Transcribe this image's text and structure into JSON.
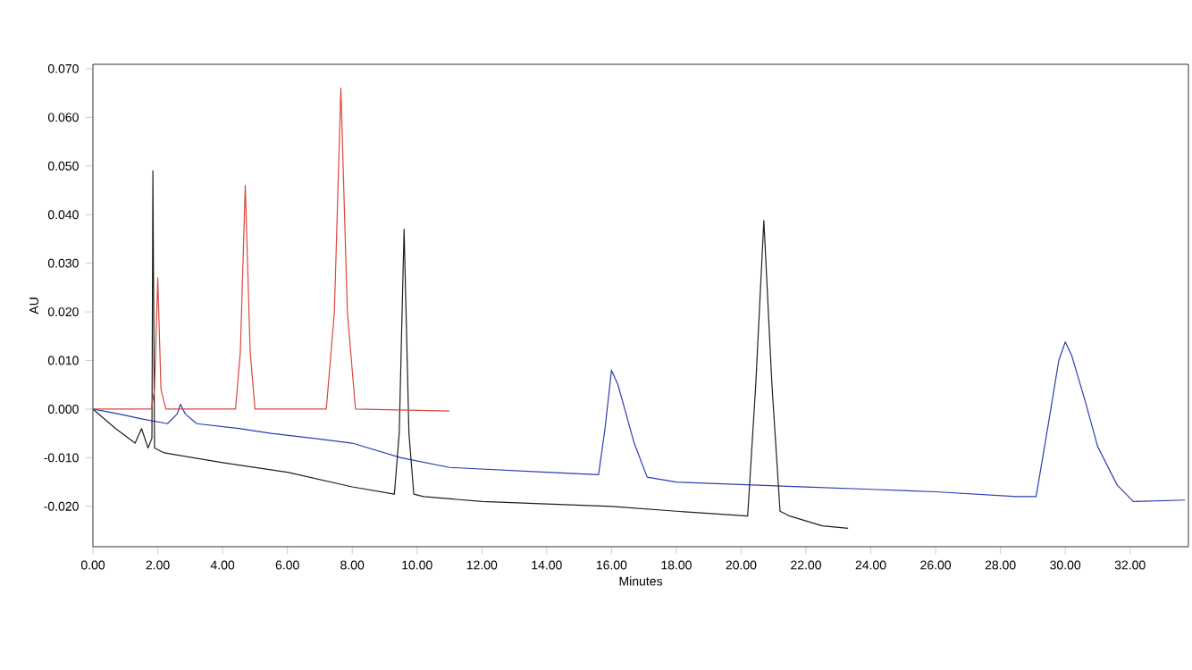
{
  "chart_data": {
    "type": "line",
    "xlabel": "Minutes",
    "ylabel": "AU",
    "xlim": [
      0,
      33.8
    ],
    "ylim": [
      -0.0283,
      0.0709
    ],
    "xticks": [
      {
        "value": 0,
        "label": "0.00"
      },
      {
        "value": 2,
        "label": "2.00"
      },
      {
        "value": 4,
        "label": "4.00"
      },
      {
        "value": 6,
        "label": "6.00"
      },
      {
        "value": 8,
        "label": "8.00"
      },
      {
        "value": 10,
        "label": "10.00"
      },
      {
        "value": 12,
        "label": "12.00"
      },
      {
        "value": 14,
        "label": "14.00"
      },
      {
        "value": 16,
        "label": "16.00"
      },
      {
        "value": 18,
        "label": "18.00"
      },
      {
        "value": 20,
        "label": "20.00"
      },
      {
        "value": 22,
        "label": "22.00"
      },
      {
        "value": 24,
        "label": "24.00"
      },
      {
        "value": 26,
        "label": "26.00"
      },
      {
        "value": 28,
        "label": "28.00"
      },
      {
        "value": 30,
        "label": "30.00"
      },
      {
        "value": 32,
        "label": "32.00"
      }
    ],
    "yticks": [
      {
        "value": -0.02,
        "label": "-0.020"
      },
      {
        "value": -0.01,
        "label": "-0.010"
      },
      {
        "value": 0,
        "label": "0.000"
      },
      {
        "value": 0.01,
        "label": "0.010"
      },
      {
        "value": 0.02,
        "label": "0.020"
      },
      {
        "value": 0.03,
        "label": "0.030"
      },
      {
        "value": 0.04,
        "label": "0.040"
      },
      {
        "value": 0.05,
        "label": "0.050"
      },
      {
        "value": 0.06,
        "label": "0.060"
      },
      {
        "value": 0.07,
        "label": "0.070"
      }
    ],
    "grid": false,
    "marker": "none",
    "line_style": "solid",
    "series": [
      {
        "color": "#2b3cb0",
        "x": [
          0,
          0.8,
          1.5,
          2.3,
          2.6,
          2.7,
          2.85,
          3.2,
          4.5,
          5.5,
          6.8,
          8,
          9.5,
          11,
          12.5,
          14,
          15.6,
          15.8,
          16.0,
          16.2,
          16.4,
          16.7,
          17.1,
          18,
          20,
          22,
          24,
          26,
          28.5,
          29.1,
          29.5,
          29.8,
          30.0,
          30.2,
          30.6,
          31.0,
          31.6,
          32.1,
          33.7
        ],
        "values": [
          0,
          -0.001,
          -0.002,
          -0.003,
          -0.001,
          0.001,
          -0.001,
          -0.003,
          -0.004,
          -0.005,
          -0.006,
          -0.007,
          -0.01,
          -0.012,
          -0.0125,
          -0.013,
          -0.0135,
          -0.004,
          0.008,
          0.005,
          0.0002,
          -0.007,
          -0.014,
          -0.015,
          -0.0155,
          -0.016,
          -0.0165,
          -0.017,
          -0.018,
          -0.018,
          -0.0022,
          0.01,
          0.0138,
          0.011,
          0.002,
          -0.0077,
          -0.0156,
          -0.019,
          -0.0187
        ]
      },
      {
        "color": "#1e1e1e",
        "x": [
          0,
          0.7,
          1.3,
          1.5,
          1.7,
          1.82,
          1.85,
          1.9,
          2.2,
          4,
          6,
          8,
          9.3,
          9.45,
          9.6,
          9.75,
          9.9,
          10.2,
          12,
          14,
          16,
          18,
          20.2,
          20.45,
          20.7,
          20.95,
          21.2,
          21.5,
          22.5,
          23.3
        ],
        "values": [
          0,
          -0.004,
          -0.007,
          -0.004,
          -0.008,
          -0.006,
          0.049,
          -0.008,
          -0.009,
          -0.011,
          -0.013,
          -0.016,
          -0.0175,
          -0.005,
          0.037,
          -0.005,
          -0.0175,
          -0.018,
          -0.019,
          -0.0195,
          -0.02,
          -0.021,
          -0.022,
          0.005,
          0.0388,
          0.005,
          -0.021,
          -0.022,
          -0.024,
          -0.0245
        ]
      },
      {
        "color": "#d9463e",
        "x": [
          0,
          1.8,
          1.9,
          2.0,
          2.1,
          2.25,
          4.4,
          4.55,
          4.7,
          4.85,
          5.0,
          7.2,
          7.45,
          7.65,
          7.85,
          8.1,
          11.0
        ],
        "values": [
          0,
          0,
          0.004,
          0.027,
          0.004,
          0,
          0,
          0.012,
          0.046,
          0.012,
          0,
          0,
          0.02,
          0.066,
          0.02,
          0,
          -0.0004
        ]
      }
    ]
  }
}
